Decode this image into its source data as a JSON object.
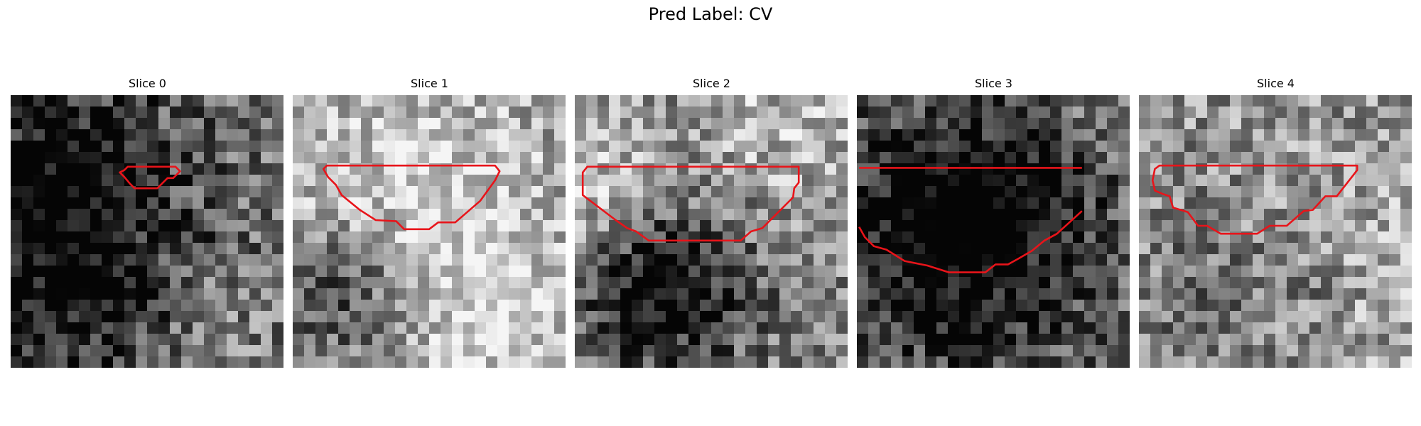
{
  "figure": {
    "title": "Pred Label: CV"
  },
  "colors": {
    "contour": "#e8141a",
    "background": "#ffffff"
  },
  "panels": [
    {
      "title": "Slice 0",
      "seed": 11,
      "tone": 0.42,
      "contrast": 0.3,
      "contour": [
        [
          10.0,
          6.6
        ],
        [
          10.3,
          6.3
        ],
        [
          14.5,
          6.3
        ],
        [
          14.9,
          6.7
        ],
        [
          14.3,
          7.3
        ],
        [
          13.8,
          7.3
        ],
        [
          12.9,
          8.2
        ],
        [
          10.9,
          8.2
        ],
        [
          10.5,
          7.8
        ],
        [
          10.0,
          7.2
        ],
        [
          9.6,
          6.8
        ]
      ]
    },
    {
      "title": "Slice 1",
      "seed": 23,
      "tone": 0.62,
      "contrast": 0.26,
      "contour": [
        [
          2.7,
          6.5
        ],
        [
          3.0,
          6.2
        ],
        [
          17.8,
          6.2
        ],
        [
          18.2,
          6.7
        ],
        [
          17.8,
          7.5
        ],
        [
          16.5,
          9.3
        ],
        [
          14.3,
          11.2
        ],
        [
          12.8,
          11.2
        ],
        [
          12.0,
          11.8
        ],
        [
          9.8,
          11.8
        ],
        [
          9.1,
          11.1
        ],
        [
          7.3,
          11.0
        ],
        [
          5.9,
          10.1
        ],
        [
          4.3,
          8.8
        ],
        [
          3.8,
          7.9
        ],
        [
          3.1,
          7.2
        ]
      ]
    },
    {
      "title": "Slice 2",
      "seed": 37,
      "tone": 0.55,
      "contrast": 0.28,
      "contour": [
        [
          0.7,
          8.8
        ],
        [
          0.7,
          6.8
        ],
        [
          1.1,
          6.3
        ],
        [
          19.7,
          6.3
        ],
        [
          19.7,
          7.7
        ],
        [
          19.3,
          8.2
        ],
        [
          19.2,
          9.0
        ],
        [
          18.7,
          9.5
        ],
        [
          16.5,
          11.7
        ],
        [
          15.5,
          12.0
        ],
        [
          14.6,
          12.8
        ],
        [
          6.5,
          12.8
        ],
        [
          5.4,
          12.0
        ],
        [
          4.6,
          11.7
        ],
        [
          3.6,
          11.0
        ]
      ]
    },
    {
      "title": "Slice 3",
      "seed": 53,
      "tone": 0.5,
      "contrast": 0.28,
      "contour": [
        [
          0.2,
          6.4
        ],
        [
          19.8,
          6.4
        ]
      ]
    },
    {
      "title": "Slice 4",
      "seed": 71,
      "tone": 0.58,
      "contrast": 0.28,
      "contour": [
        [
          1.4,
          6.5
        ],
        [
          1.8,
          6.2
        ],
        [
          19.2,
          6.2
        ],
        [
          19.2,
          6.6
        ],
        [
          17.4,
          8.9
        ],
        [
          16.4,
          8.9
        ],
        [
          15.3,
          10.1
        ],
        [
          14.5,
          10.2
        ],
        [
          13.0,
          11.5
        ],
        [
          11.5,
          11.5
        ],
        [
          10.4,
          12.2
        ],
        [
          7.2,
          12.2
        ],
        [
          6.0,
          11.5
        ],
        [
          5.2,
          11.5
        ],
        [
          4.3,
          10.3
        ],
        [
          3.0,
          9.9
        ],
        [
          2.7,
          8.9
        ],
        [
          2.1,
          8.7
        ],
        [
          1.4,
          8.4
        ],
        [
          1.2,
          7.5
        ]
      ]
    }
  ]
}
